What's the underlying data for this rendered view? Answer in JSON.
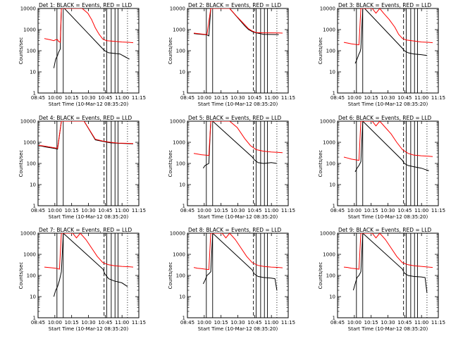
{
  "figure": {
    "xlabel": "Start Time (10-Mar-12 08:35:20)",
    "ylabel": "Counts/sec",
    "xticks": [
      "08:45",
      "10:00",
      "10:15",
      "10:30",
      "10:45",
      "11:00",
      "11:15"
    ],
    "yticks": [
      "1",
      "10",
      "100",
      "1000",
      "10000"
    ],
    "colors": {
      "events": "#000000",
      "lld": "#ff0000"
    }
  },
  "chart_data": [
    {
      "type": "line",
      "title": "Det 1: BLACK = Events, RED = LLD",
      "xlabel": "Start Time (10-Mar-12 08:35:20)",
      "ylabel": "Counts/sec",
      "xlim": [
        8.583,
        11.25
      ],
      "ylim": [
        1,
        10000
      ],
      "yscale": "log",
      "series": [
        {
          "name": "Events",
          "color": "#000000",
          "x": [
            9.0,
            9.05,
            9.1,
            9.12,
            9.17,
            9.2,
            9.22,
            9.28,
            10.3,
            10.35,
            10.45,
            10.6,
            10.75,
            10.9,
            11.0
          ],
          "y": [
            15,
            40,
            60,
            80,
            120,
            10000,
            10000,
            10000,
            120,
            100,
            80,
            75,
            70,
            50,
            40
          ]
        },
        {
          "name": "LLD",
          "color": "#ff0000",
          "x": [
            8.75,
            8.8,
            8.9,
            9.0,
            9.05,
            9.1,
            9.12,
            9.17,
            9.2,
            9.25,
            9.4,
            9.5,
            9.6,
            9.75,
            9.9,
            10.0,
            10.1,
            10.2,
            10.3,
            10.4,
            10.6,
            10.8,
            11.0,
            11.1
          ],
          "y": [
            380,
            360,
            330,
            300,
            330,
            340,
            280,
            250,
            10000,
            10000,
            10000,
            10000,
            10000,
            10000,
            6000,
            3000,
            1200,
            600,
            350,
            300,
            280,
            260,
            250,
            240
          ]
        }
      ]
    },
    {
      "type": "line",
      "title": "Det 2: BLACK = Events, RED = LLD",
      "xlabel": "Start Time (10-Mar-12 08:35:20)",
      "ylabel": "Counts/sec",
      "xlim": [
        8.583,
        11.25
      ],
      "ylim": [
        1,
        10000
      ],
      "yscale": "log",
      "series": [
        {
          "name": "Events",
          "color": "#000000",
          "x": [
            8.75,
            8.85,
            8.95,
            9.05,
            9.1,
            9.15,
            9.2,
            9.4,
            9.7,
            10.1,
            10.2,
            10.3,
            10.4,
            10.5,
            10.6,
            10.8,
            11.0
          ],
          "y": [
            650,
            620,
            600,
            580,
            560,
            500,
            10000,
            10000,
            10000,
            1500,
            1000,
            800,
            700,
            650,
            600,
            590,
            580
          ]
        },
        {
          "name": "LLD",
          "color": "#ff0000",
          "x": [
            8.75,
            8.85,
            8.95,
            9.05,
            9.1,
            9.2,
            9.3,
            9.5,
            9.7,
            9.9,
            10.1,
            10.2,
            10.3,
            10.4,
            10.6,
            10.8,
            11.0,
            11.1
          ],
          "y": [
            680,
            650,
            620,
            600,
            580,
            10000,
            10000,
            10000,
            10000,
            4000,
            1700,
            1100,
            850,
            720,
            700,
            700,
            690,
            680
          ]
        }
      ]
    },
    {
      "type": "line",
      "title": "Det 3: BLACK = Events, RED = LLD",
      "xlabel": "Start Time (10-Mar-12 08:35:20)",
      "ylabel": "Counts/sec",
      "xlim": [
        8.583,
        11.25
      ],
      "ylim": [
        1,
        10000
      ],
      "yscale": "log",
      "series": [
        {
          "name": "Events",
          "color": "#000000",
          "x": [
            9.05,
            9.1,
            9.15,
            9.18,
            9.2,
            9.25,
            9.3,
            10.3,
            10.35,
            10.45,
            10.6,
            10.8,
            10.95
          ],
          "y": [
            25,
            40,
            70,
            90,
            130,
            10000,
            10000,
            130,
            100,
            80,
            70,
            65,
            60
          ]
        },
        {
          "name": "LLD",
          "color": "#ff0000",
          "x": [
            8.75,
            8.85,
            8.95,
            9.05,
            9.15,
            9.2,
            9.3,
            9.5,
            9.6,
            9.7,
            9.8,
            9.95,
            10.1,
            10.2,
            10.3,
            10.4,
            10.6,
            10.8,
            11.0,
            11.1
          ],
          "y": [
            250,
            230,
            210,
            200,
            190,
            10000,
            10000,
            10000,
            6000,
            10000,
            6000,
            3000,
            1300,
            600,
            380,
            320,
            290,
            260,
            250,
            240
          ]
        }
      ]
    },
    {
      "type": "line",
      "title": "Det 4: BLACK = Events, RED = LLD",
      "xlabel": "Start Time (10-Mar-12 08:35:20)",
      "ylabel": "Counts/sec",
      "xlim": [
        8.583,
        11.25
      ],
      "ylim": [
        1,
        10000
      ],
      "yscale": "log",
      "series": [
        {
          "name": "Events",
          "color": "#000000",
          "x": [
            8.6,
            8.7,
            8.8,
            8.9,
            9.0,
            9.05,
            9.1,
            9.2,
            9.4,
            9.6,
            9.8,
            10.1,
            10.3,
            10.5,
            10.7,
            10.9,
            11.1
          ],
          "y": [
            700,
            650,
            600,
            560,
            520,
            500,
            480,
            10000,
            10000,
            10000,
            10000,
            1300,
            1100,
            950,
            900,
            870,
            850
          ]
        },
        {
          "name": "LLD",
          "color": "#ff0000",
          "x": [
            8.6,
            8.7,
            8.8,
            8.9,
            9.0,
            9.1,
            9.2,
            9.4,
            9.6,
            9.8,
            10.1,
            10.3,
            10.5,
            10.7,
            10.9,
            11.1
          ],
          "y": [
            720,
            680,
            640,
            600,
            560,
            520,
            10000,
            10000,
            10000,
            10000,
            1400,
            1150,
            1000,
            920,
            900,
            880
          ]
        }
      ]
    },
    {
      "type": "line",
      "title": "Det 5: BLACK = Events, RED = LLD",
      "xlabel": "Start Time (10-Mar-12 08:35:20)",
      "ylabel": "Counts/sec",
      "xlim": [
        8.583,
        11.25
      ],
      "ylim": [
        1,
        10000
      ],
      "yscale": "log",
      "series": [
        {
          "name": "Events",
          "color": "#000000",
          "x": [
            9.0,
            9.05,
            9.1,
            9.15,
            9.2,
            9.25,
            10.3,
            10.35,
            10.45,
            10.6,
            10.8,
            10.95
          ],
          "y": [
            60,
            80,
            90,
            100,
            10000,
            10000,
            200,
            150,
            110,
            100,
            110,
            100
          ]
        },
        {
          "name": "LLD",
          "color": "#ff0000",
          "x": [
            8.75,
            8.85,
            8.95,
            9.05,
            9.15,
            9.2,
            9.3,
            9.5,
            9.7,
            9.9,
            10.1,
            10.25,
            10.4,
            10.6,
            10.8,
            11.0,
            11.1
          ],
          "y": [
            300,
            280,
            260,
            250,
            240,
            10000,
            10000,
            10000,
            10000,
            5000,
            1500,
            700,
            450,
            380,
            350,
            330,
            320
          ]
        }
      ]
    },
    {
      "type": "line",
      "title": "Det 6: BLACK = Events, RED = LLD",
      "xlabel": "Start Time (10-Mar-12 08:35:20)",
      "ylabel": "Counts/sec",
      "xlim": [
        8.583,
        11.25
      ],
      "ylim": [
        1,
        10000
      ],
      "yscale": "log",
      "series": [
        {
          "name": "Events",
          "color": "#000000",
          "x": [
            9.05,
            9.1,
            9.15,
            9.2,
            9.25,
            10.3,
            10.35,
            10.45,
            10.6,
            10.8,
            11.0
          ],
          "y": [
            40,
            60,
            80,
            120,
            10000,
            140,
            100,
            80,
            70,
            60,
            45
          ]
        },
        {
          "name": "LLD",
          "color": "#ff0000",
          "x": [
            8.75,
            8.85,
            8.95,
            9.05,
            9.15,
            9.2,
            9.3,
            9.5,
            9.6,
            9.7,
            9.85,
            10.0,
            10.15,
            10.3,
            10.45,
            10.6,
            10.8,
            11.0,
            11.1
          ],
          "y": [
            200,
            180,
            160,
            150,
            140,
            10000,
            10000,
            10000,
            6000,
            10000,
            5000,
            2500,
            1000,
            450,
            300,
            250,
            230,
            220,
            210
          ]
        }
      ]
    },
    {
      "type": "line",
      "title": "Det 7: BLACK = Events, RED = LLD",
      "xlabel": "Start Time (10-Mar-12 08:35:20)",
      "ylabel": "Counts/sec",
      "xlim": [
        8.583,
        11.25
      ],
      "ylim": [
        1,
        10000
      ],
      "yscale": "log",
      "series": [
        {
          "name": "Events",
          "color": "#000000",
          "x": [
            9.0,
            9.05,
            9.1,
            9.15,
            9.2,
            9.25,
            10.3,
            10.35,
            10.45,
            10.6,
            10.8,
            10.95
          ],
          "y": [
            10,
            20,
            30,
            60,
            150,
            10000,
            200,
            120,
            70,
            55,
            45,
            30
          ]
        },
        {
          "name": "LLD",
          "color": "#ff0000",
          "x": [
            8.75,
            8.85,
            8.95,
            9.05,
            9.15,
            9.2,
            9.3,
            9.5,
            9.6,
            9.7,
            9.85,
            10.0,
            10.15,
            10.3,
            10.45,
            10.6,
            10.8,
            11.0,
            11.1
          ],
          "y": [
            250,
            240,
            230,
            220,
            200,
            10000,
            10000,
            10000,
            6000,
            10000,
            5000,
            2000,
            800,
            400,
            320,
            290,
            270,
            260,
            250
          ]
        }
      ]
    },
    {
      "type": "line",
      "title": "Det 8: BLACK = Events, RED = LLD",
      "xlabel": "Start Time (10-Mar-12 08:35:20)",
      "ylabel": "Counts/sec",
      "xlim": [
        8.583,
        11.25
      ],
      "ylim": [
        1,
        10000
      ],
      "yscale": "log",
      "series": [
        {
          "name": "Events",
          "color": "#000000",
          "x": [
            9.0,
            9.05,
            9.1,
            9.15,
            9.2,
            9.25,
            10.3,
            10.35,
            10.45,
            10.6,
            10.8,
            10.9,
            10.95
          ],
          "y": [
            40,
            60,
            100,
            120,
            150,
            10000,
            180,
            120,
            90,
            80,
            75,
            70,
            20
          ]
        },
        {
          "name": "LLD",
          "color": "#ff0000",
          "x": [
            8.75,
            8.85,
            8.95,
            9.05,
            9.15,
            9.2,
            9.3,
            9.5,
            9.6,
            9.7,
            9.85,
            10.0,
            10.15,
            10.3,
            10.45,
            10.6,
            10.8,
            11.0,
            11.1
          ],
          "y": [
            240,
            220,
            210,
            200,
            190,
            10000,
            10000,
            10000,
            6000,
            10000,
            5000,
            2000,
            800,
            400,
            300,
            270,
            250,
            240,
            230
          ]
        }
      ]
    },
    {
      "type": "line",
      "title": "Det 9: BLACK = Events, RED = LLD",
      "xlabel": "Start Time (10-Mar-12 08:35:20)",
      "ylabel": "Counts/sec",
      "xlim": [
        8.583,
        11.25
      ],
      "ylim": [
        1,
        10000
      ],
      "yscale": "log",
      "series": [
        {
          "name": "Events",
          "color": "#000000",
          "x": [
            9.0,
            9.05,
            9.1,
            9.15,
            9.2,
            9.25,
            10.3,
            10.35,
            10.45,
            10.6,
            10.8,
            10.9,
            10.95
          ],
          "y": [
            20,
            40,
            80,
            100,
            150,
            10000,
            200,
            130,
            100,
            90,
            85,
            80,
            15
          ]
        },
        {
          "name": "LLD",
          "color": "#ff0000",
          "x": [
            8.75,
            8.85,
            8.95,
            9.05,
            9.15,
            9.2,
            9.3,
            9.5,
            9.6,
            9.7,
            9.85,
            10.0,
            10.15,
            10.3,
            10.45,
            10.6,
            10.8,
            11.0,
            11.1
          ],
          "y": [
            250,
            240,
            220,
            210,
            200,
            10000,
            10000,
            10000,
            6000,
            10000,
            5000,
            2000,
            800,
            400,
            320,
            290,
            270,
            250,
            240
          ]
        }
      ]
    }
  ]
}
